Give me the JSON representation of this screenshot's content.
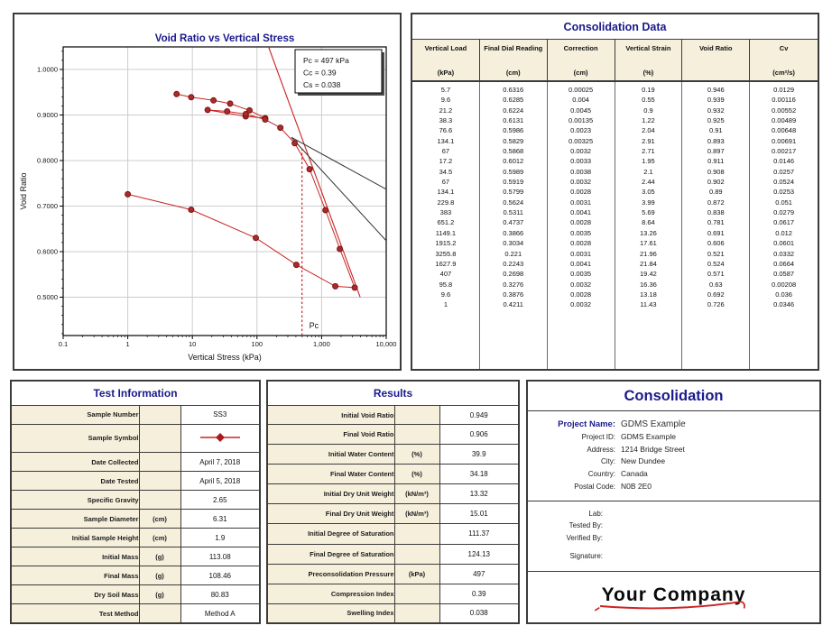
{
  "colors": {
    "navy": "#1a1a8c",
    "cream": "#f5efdc",
    "red": "#cc2222",
    "marker_fill": "#aa2b2b",
    "marker_stroke": "#7c1414",
    "construction_black": "#333333",
    "grid": "#cccccc"
  },
  "chart_data": {
    "type": "line",
    "title": "Void Ratio vs Vertical Stress",
    "xlabel": "Vertical Stress (kPa)",
    "ylabel": "Void Ratio",
    "x_scale": "log",
    "xlim": [
      0.1,
      10000
    ],
    "ylim": [
      0.4158,
      1.0495
    ],
    "x_tick_values": [
      0.1,
      1,
      10,
      100,
      1000,
      10000
    ],
    "x_tick_labels": [
      "0.1",
      "1",
      "10",
      "100",
      "1,000",
      "10,000"
    ],
    "y_tick_values": [
      1.0,
      0.9,
      0.8,
      0.7,
      0.6,
      0.5
    ],
    "y_tick_labels": [
      "1.0000",
      "0.9000",
      "0.8000",
      "0.7000",
      "0.6000",
      "0.5000"
    ],
    "grid": true,
    "series": [
      {
        "name": "SS3",
        "points": [
          [
            5.7,
            0.946
          ],
          [
            9.6,
            0.939
          ],
          [
            21.2,
            0.932
          ],
          [
            38.3,
            0.925
          ],
          [
            76.6,
            0.91
          ],
          [
            134.1,
            0.893
          ],
          [
            67,
            0.897
          ],
          [
            17.2,
            0.911
          ],
          [
            34.5,
            0.908
          ],
          [
            67,
            0.902
          ],
          [
            134.1,
            0.89
          ],
          [
            229.8,
            0.872
          ],
          [
            383,
            0.838
          ],
          [
            651.2,
            0.781
          ],
          [
            1149.1,
            0.691
          ],
          [
            1915.2,
            0.606
          ],
          [
            3255.8,
            0.521
          ],
          [
            1627.9,
            0.524
          ],
          [
            407,
            0.571
          ],
          [
            95.8,
            0.63
          ],
          [
            9.6,
            0.692
          ],
          [
            1,
            0.726
          ]
        ]
      }
    ],
    "annotation_box": {
      "lines": [
        "Pc = 497 kPa",
        "Cc = 0.39",
        "Cs = 0.038"
      ]
    },
    "construction": {
      "virgin_line": [
        [
          151,
          1.0495
        ],
        [
          3950,
          0.5
        ]
      ],
      "tangent_lines": [
        [
          [
            340,
            0.851
          ],
          [
            10000,
            0.737
          ]
        ],
        [
          [
            340,
            0.851
          ],
          [
            10000,
            0.624
          ]
        ]
      ],
      "pc_vline": {
        "x": 497,
        "e_top": 0.83,
        "label": "Pc"
      }
    }
  },
  "consolidation_table": {
    "title": "Consolidation Data",
    "columns": [
      {
        "name": "Vertical Load",
        "units": "(kPa)"
      },
      {
        "name": "Final Dial Reading",
        "units": "(cm)"
      },
      {
        "name": "Correction",
        "units": "(cm)"
      },
      {
        "name": "Vertical Strain",
        "units": "(%)"
      },
      {
        "name": "Void Ratio",
        "units": ""
      },
      {
        "name": "Cv",
        "units": "(cm²/s)"
      }
    ],
    "rows": [
      [
        "5.7",
        "0.6316",
        "0.00025",
        "0.19",
        "0.946",
        "0.0129"
      ],
      [
        "9.6",
        "0.6285",
        "0.004",
        "0.55",
        "0.939",
        "0.00116"
      ],
      [
        "21.2",
        "0.6224",
        "0.0045",
        "0.9",
        "0.932",
        "0.00552"
      ],
      [
        "38.3",
        "0.6131",
        "0.00135",
        "1.22",
        "0.925",
        "0.00489"
      ],
      [
        "76.6",
        "0.5986",
        "0.0023",
        "2.04",
        "0.91",
        "0.00648"
      ],
      [
        "134.1",
        "0.5829",
        "0.00325",
        "2.91",
        "0.893",
        "0.00691"
      ],
      [
        "67",
        "0.5868",
        "0.0032",
        "2.71",
        "0.897",
        "0.00217"
      ],
      [
        "17.2",
        "0.6012",
        "0.0033",
        "1.95",
        "0.911",
        "0.0146"
      ],
      [
        "34.5",
        "0.5989",
        "0.0038",
        "2.1",
        "0.908",
        "0.0257"
      ],
      [
        "67",
        "0.5919",
        "0.0032",
        "2.44",
        "0.902",
        "0.0524"
      ],
      [
        "134.1",
        "0.5799",
        "0.0028",
        "3.05",
        "0.89",
        "0.0253"
      ],
      [
        "229.8",
        "0.5624",
        "0.0031",
        "3.99",
        "0.872",
        "0.051"
      ],
      [
        "383",
        "0.5311",
        "0.0041",
        "5.69",
        "0.838",
        "0.0279"
      ],
      [
        "651.2",
        "0.4737",
        "0.0028",
        "8.64",
        "0.781",
        "0.0617"
      ],
      [
        "1149.1",
        "0.3866",
        "0.0035",
        "13.26",
        "0.691",
        "0.012"
      ],
      [
        "1915.2",
        "0.3034",
        "0.0028",
        "17.61",
        "0.606",
        "0.0601"
      ],
      [
        "3255.8",
        "0.221",
        "0.0031",
        "21.96",
        "0.521",
        "0.0332"
      ],
      [
        "1627.9",
        "0.2243",
        "0.0041",
        "21.84",
        "0.524",
        "0.0664"
      ],
      [
        "407",
        "0.2698",
        "0.0035",
        "19.42",
        "0.571",
        "0.0587"
      ],
      [
        "95.8",
        "0.3276",
        "0.0032",
        "16.36",
        "0.63",
        "0.00208"
      ],
      [
        "9.6",
        "0.3876",
        "0.0028",
        "13.18",
        "0.692",
        "0.036"
      ],
      [
        "1",
        "0.4211",
        "0.0032",
        "11.43",
        "0.726",
        "0.0346"
      ]
    ]
  },
  "test_info": {
    "title": "Test Information",
    "rows": [
      {
        "label": "Sample Number",
        "units": "",
        "value": "SS3"
      },
      {
        "label": "Sample Symbol",
        "units": "",
        "value": "",
        "symbol": true
      },
      {
        "label": "Date Collected",
        "units": "",
        "value": "April 7, 2018"
      },
      {
        "label": "Date Tested",
        "units": "",
        "value": "April 5, 2018"
      },
      {
        "label": "Specific Gravity",
        "units": "",
        "value": "2.65"
      },
      {
        "label": "Sample Diameter",
        "units": "(cm)",
        "value": "6.31"
      },
      {
        "label": "Initial Sample Height",
        "units": "(cm)",
        "value": "1.9"
      },
      {
        "label": "Initial Mass",
        "units": "(g)",
        "value": "113.08"
      },
      {
        "label": "Final Mass",
        "units": "(g)",
        "value": "108.46"
      },
      {
        "label": "Dry Soil Mass",
        "units": "(g)",
        "value": "80.83"
      },
      {
        "label": "Test Method",
        "units": "",
        "value": "Method A"
      }
    ]
  },
  "results": {
    "title": "Results",
    "rows": [
      {
        "label": "Initial Void Ratio",
        "units": "",
        "value": "0.949"
      },
      {
        "label": "Final Void Ratio",
        "units": "",
        "value": "0.906"
      },
      {
        "label": "Initial Water Content",
        "units": "(%)",
        "value": "39.9"
      },
      {
        "label": "Final Water Content",
        "units": "(%)",
        "value": "34.18"
      },
      {
        "label": "Initial Dry Unit Weight",
        "units": "(kN/m³)",
        "value": "13.32"
      },
      {
        "label": "Final Dry Unit Weight",
        "units": "(kN/m³)",
        "value": "15.01"
      },
      {
        "label": "Initial Degree of Saturation",
        "units": "",
        "value": "111.37"
      },
      {
        "label": "Final Degree of Saturation",
        "units": "",
        "value": "124.13"
      },
      {
        "label": "Preconsolidation Pressure",
        "units": "(kPa)",
        "value": "497"
      },
      {
        "label": "Compression Index",
        "units": "",
        "value": "0.39"
      },
      {
        "label": "Swelling Index",
        "units": "",
        "value": "0.038"
      }
    ]
  },
  "project_panel": {
    "title": "Consolidation",
    "fields": [
      {
        "label": "Project Name:",
        "value": "GDMS Example",
        "primary": true
      },
      {
        "label": "Project ID:",
        "value": "GDMS Example"
      },
      {
        "label": "Address:",
        "value": "1214 Bridge Street"
      },
      {
        "label": "City:",
        "value": "New Dundee"
      },
      {
        "label": "Country:",
        "value": "Canada"
      },
      {
        "label": "Postal Code:",
        "value": "N0B 2E0"
      }
    ],
    "lab_fields": [
      "Lab:",
      "Tested By:",
      "Verified By:"
    ],
    "signature_label": "Signature:",
    "logo_text": "Your Company"
  }
}
